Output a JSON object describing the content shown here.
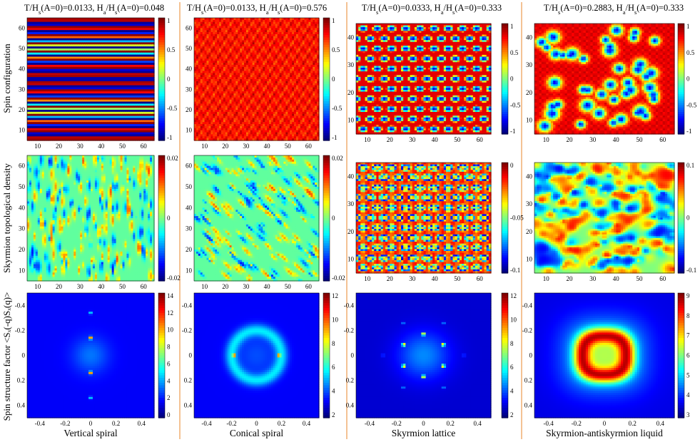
{
  "figure": {
    "row_labels": [
      "Spin configuration",
      "Skyrmion topological density",
      "Spin structure factor <Sₓ(-q)Sₓ(q)>"
    ],
    "colors": {
      "divider": "#f2b27a",
      "background": "#ffffff"
    },
    "colormap": "jet",
    "columns": [
      {
        "title_parts": [
          "T/H",
          "s",
          "(A=0)=0.0133, H",
          "a",
          "/H",
          "s",
          "(A=0)=0.048"
        ],
        "caption": "Vertical spiral",
        "maps": [
          {
            "kind": "stripes",
            "x_ticks": [
              "10",
              "20",
              "30",
              "40",
              "50",
              "60"
            ],
            "y_ticks": [
              "60",
              "50",
              "40",
              "30",
              "20",
              "10"
            ],
            "cb_ticks": [
              "1",
              "0.5",
              "0",
              "-0.5",
              "-1"
            ]
          },
          {
            "kind": "noise_v",
            "x_ticks": [
              "10",
              "20",
              "30",
              "40",
              "50",
              "60"
            ],
            "y_ticks": [
              "60",
              "50",
              "40",
              "30",
              "20",
              "10"
            ],
            "cb_ticks": [
              "0.02",
              "0",
              "-0.02"
            ]
          },
          {
            "kind": "sf_spiral",
            "x_ticks": [
              "-0.4",
              "-0.2",
              "0",
              "0.2",
              "0.4"
            ],
            "y_ticks": [
              "-0.4",
              "-0.2",
              "0",
              "0.2",
              "0.4"
            ],
            "cb_ticks": [
              "14",
              "12",
              "10",
              "8",
              "6",
              "4",
              "2",
              "0"
            ]
          }
        ]
      },
      {
        "title_parts": [
          "T/H",
          "s",
          "(A=0)=0.0133, H",
          "a",
          "/H",
          "s",
          "(A=0)=0.576"
        ],
        "caption": "Conical spiral",
        "maps": [
          {
            "kind": "red_uniform",
            "x_ticks": [
              "10",
              "20",
              "30",
              "40",
              "50",
              "60"
            ],
            "y_ticks": [
              "60",
              "50",
              "40",
              "30",
              "20",
              "10"
            ],
            "cb_ticks": [
              "1",
              "0.5",
              "0",
              "-0.5",
              "-1"
            ]
          },
          {
            "kind": "noise_d",
            "x_ticks": [
              "10",
              "20",
              "30",
              "40",
              "50",
              "60"
            ],
            "y_ticks": [
              "60",
              "50",
              "40",
              "30",
              "20",
              "10"
            ],
            "cb_ticks": [
              "0.02",
              "0",
              "-0.02"
            ]
          },
          {
            "kind": "sf_conical",
            "x_ticks": [
              "-0.4",
              "-0.2",
              "0",
              "0.2",
              "0.4"
            ],
            "y_ticks": [
              "-0.4",
              "-0.2",
              "0",
              "0.2",
              "0.4"
            ],
            "cb_ticks": [
              "12",
              "10",
              "8",
              "6",
              "4",
              "2"
            ]
          }
        ]
      },
      {
        "title_parts": [
          "T/H",
          "s",
          "(A=0)=0.0333, H",
          "a",
          "/H",
          "s",
          "(A=0)=0.333"
        ],
        "caption": "Skyrmion lattice",
        "maps": [
          {
            "kind": "lattice",
            "x_ticks": [
              "10",
              "20",
              "30",
              "40",
              "50",
              "60"
            ],
            "y_ticks": [
              "40",
              "30",
              "20",
              "10"
            ],
            "cb_ticks": [
              "1",
              "0.5",
              "0",
              "-0.5",
              "-1"
            ]
          },
          {
            "kind": "lattice_density",
            "x_ticks": [
              "10",
              "20",
              "30",
              "40",
              "50",
              "60"
            ],
            "y_ticks": [
              "40",
              "30",
              "20",
              "10"
            ],
            "cb_ticks": [
              "0",
              "-0.05",
              "-0.1"
            ]
          },
          {
            "kind": "sf_lattice",
            "x_ticks": [
              "-0.4",
              "-0.2",
              "0",
              "0.2",
              "0.4"
            ],
            "y_ticks": [
              "-0.4",
              "-0.2",
              "0",
              "0.2",
              "0.4"
            ],
            "cb_ticks": [
              "12",
              "10",
              "8",
              "6",
              "4",
              "2"
            ]
          }
        ]
      },
      {
        "title_parts": [
          "T/H",
          "s",
          "(A=0)=0.2883, H",
          "a",
          "/H",
          "s",
          "(A=0)=0.333"
        ],
        "caption": "Skyrmion-antiskyrmion liquid",
        "maps": [
          {
            "kind": "liquid",
            "x_ticks": [
              "10",
              "20",
              "30",
              "40",
              "50",
              "60"
            ],
            "y_ticks": [
              "40",
              "30",
              "20",
              "10"
            ],
            "cb_ticks": [
              "1",
              "0.5",
              "0",
              "-0.5",
              "-1"
            ]
          },
          {
            "kind": "noise_liq",
            "x_ticks": [
              "10",
              "20",
              "30",
              "40",
              "50",
              "60"
            ],
            "y_ticks": [
              "40",
              "30",
              "20",
              "10"
            ],
            "cb_ticks": [
              "0.1",
              "0",
              "-0.1"
            ]
          },
          {
            "kind": "sf_liquid",
            "x_ticks": [
              "-0.4",
              "-0.2",
              "0",
              "0.2",
              "0.4"
            ],
            "y_ticks": [
              "-0.4",
              "-0.2",
              "0",
              "0.2",
              "0.4"
            ],
            "cb_ticks": [
              "9",
              "8",
              "7",
              "6",
              "5",
              "4",
              "3"
            ]
          }
        ]
      }
    ]
  }
}
